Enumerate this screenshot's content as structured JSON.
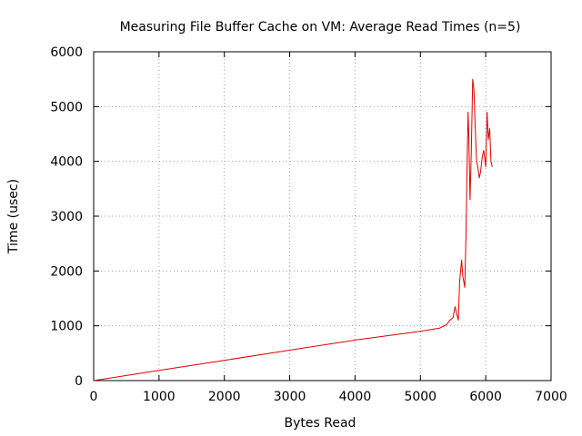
{
  "chart_data": {
    "type": "line",
    "title": "Measuring File Buffer Cache on VM: Average Read Times (n=5)",
    "xlabel": "Bytes Read",
    "ylabel": "Time (usec)",
    "xlim": [
      0,
      7000
    ],
    "ylim": [
      0,
      6000
    ],
    "xticks": [
      "0",
      "1000",
      "2000",
      "3000",
      "4000",
      "5000",
      "6000",
      "7000"
    ],
    "yticks": [
      "0",
      "1000",
      "2000",
      "3000",
      "4000",
      "5000",
      "6000"
    ],
    "grid": true,
    "legend": "none",
    "series": [
      {
        "color": "#dd0000",
        "x": [
          0,
          1000,
          2000,
          3000,
          4000,
          5000,
          5300,
          5400,
          5450,
          5500,
          5530,
          5550,
          5580,
          5600,
          5630,
          5650,
          5680,
          5700,
          5710,
          5730,
          5740,
          5760,
          5780,
          5800,
          5820,
          5840,
          5860,
          5880,
          5900,
          5920,
          5950,
          5970,
          6000,
          6020,
          6040,
          6060,
          6080,
          6100
        ],
        "y": [
          0,
          185,
          370,
          555,
          740,
          900,
          960,
          1020,
          1100,
          1150,
          1350,
          1250,
          1100,
          1800,
          2200,
          1900,
          1700,
          2800,
          3600,
          4900,
          4500,
          3300,
          4200,
          5500,
          5300,
          4600,
          4000,
          3900,
          3700,
          3800,
          4100,
          4200,
          3900,
          4900,
          4400,
          4600,
          4000,
          3900
        ]
      }
    ]
  }
}
